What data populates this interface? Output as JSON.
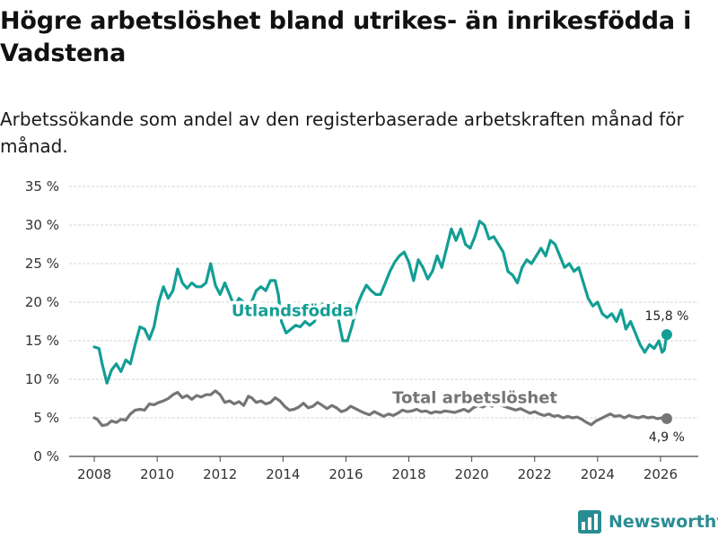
{
  "title": "Högre arbetslöshet bland utrikes- än inrikesfödda i Vadstena",
  "subtitle": "Arbetssökande som andel av den registerbaserade arbetskraften månad för månad.",
  "brand": {
    "name": "Newsworthy",
    "icon": "bar-chart-icon"
  },
  "colors": {
    "utlandsfodda": "#139e95",
    "total": "#757575",
    "grid": "#d6d6d6",
    "brand": "#2a8c93"
  },
  "chart_data": {
    "type": "line",
    "xlim": [
      2007.2,
      2027.2
    ],
    "ylim": [
      0,
      35
    ],
    "x_ticks": [
      2008,
      2010,
      2012,
      2014,
      2016,
      2018,
      2020,
      2022,
      2024,
      2026
    ],
    "x_tick_labels": [
      "2008",
      "2010",
      "2012",
      "2014",
      "2016",
      "2018",
      "2020",
      "2022",
      "2024",
      "2026"
    ],
    "y_ticks": [
      0,
      5,
      10,
      15,
      20,
      25,
      30,
      35
    ],
    "y_tick_labels": [
      "0 %",
      "5 %",
      "10 %",
      "15 %",
      "20 %",
      "25 %",
      "30 %",
      "35 %"
    ],
    "grid": true,
    "series": [
      {
        "name": "Utlandsfödda",
        "color": "#139e95",
        "end_label": "15,8 %",
        "points": [
          [
            2008.0,
            14.2
          ],
          [
            2008.15,
            14.0
          ],
          [
            2008.25,
            12.0
          ],
          [
            2008.4,
            9.5
          ],
          [
            2008.55,
            11.2
          ],
          [
            2008.7,
            12.0
          ],
          [
            2008.85,
            11.0
          ],
          [
            2009.0,
            12.5
          ],
          [
            2009.15,
            12.0
          ],
          [
            2009.3,
            14.5
          ],
          [
            2009.45,
            16.8
          ],
          [
            2009.6,
            16.5
          ],
          [
            2009.75,
            15.2
          ],
          [
            2009.9,
            16.8
          ],
          [
            2010.05,
            20.0
          ],
          [
            2010.2,
            22.0
          ],
          [
            2010.35,
            20.5
          ],
          [
            2010.5,
            21.5
          ],
          [
            2010.65,
            24.3
          ],
          [
            2010.8,
            22.5
          ],
          [
            2010.95,
            21.8
          ],
          [
            2011.1,
            22.5
          ],
          [
            2011.25,
            22.0
          ],
          [
            2011.4,
            22.0
          ],
          [
            2011.55,
            22.5
          ],
          [
            2011.7,
            25.0
          ],
          [
            2011.85,
            22.2
          ],
          [
            2012.0,
            21.0
          ],
          [
            2012.15,
            22.5
          ],
          [
            2012.3,
            21.0
          ],
          [
            2012.45,
            19.5
          ],
          [
            2012.6,
            20.5
          ],
          [
            2012.75,
            20.0
          ],
          [
            2012.85,
            18.0
          ],
          [
            2013.0,
            20.0
          ],
          [
            2013.15,
            21.5
          ],
          [
            2013.3,
            22.0
          ],
          [
            2013.45,
            21.5
          ],
          [
            2013.6,
            22.8
          ],
          [
            2013.75,
            22.8
          ],
          [
            2013.85,
            21.0
          ],
          [
            2013.95,
            17.5
          ],
          [
            2014.1,
            16.0
          ],
          [
            2014.25,
            16.5
          ],
          [
            2014.4,
            17.0
          ],
          [
            2014.55,
            16.8
          ],
          [
            2014.7,
            17.5
          ],
          [
            2014.85,
            17.0
          ],
          [
            2015.0,
            17.5
          ],
          [
            2015.15,
            19.5
          ],
          [
            2015.3,
            19.8
          ],
          [
            2015.45,
            19.5
          ],
          [
            2015.6,
            19.8
          ],
          [
            2015.75,
            18.0
          ],
          [
            2015.9,
            15.0
          ],
          [
            2016.05,
            15.0
          ],
          [
            2016.2,
            17.0
          ],
          [
            2016.35,
            19.5
          ],
          [
            2016.5,
            21.0
          ],
          [
            2016.65,
            22.2
          ],
          [
            2016.8,
            21.5
          ],
          [
            2016.95,
            21.0
          ],
          [
            2017.1,
            21.0
          ],
          [
            2017.25,
            22.5
          ],
          [
            2017.4,
            24.0
          ],
          [
            2017.55,
            25.2
          ],
          [
            2017.7,
            26.0
          ],
          [
            2017.85,
            26.5
          ],
          [
            2018.0,
            25.2
          ],
          [
            2018.15,
            22.8
          ],
          [
            2018.3,
            25.5
          ],
          [
            2018.45,
            24.5
          ],
          [
            2018.6,
            23.0
          ],
          [
            2018.75,
            24.0
          ],
          [
            2018.9,
            26.0
          ],
          [
            2019.05,
            24.5
          ],
          [
            2019.2,
            27.0
          ],
          [
            2019.35,
            29.5
          ],
          [
            2019.5,
            28.0
          ],
          [
            2019.65,
            29.5
          ],
          [
            2019.8,
            27.5
          ],
          [
            2019.95,
            27.0
          ],
          [
            2020.1,
            28.5
          ],
          [
            2020.25,
            30.5
          ],
          [
            2020.4,
            30.0
          ],
          [
            2020.55,
            28.2
          ],
          [
            2020.7,
            28.5
          ],
          [
            2020.85,
            27.5
          ],
          [
            2021.0,
            26.5
          ],
          [
            2021.15,
            24.0
          ],
          [
            2021.3,
            23.5
          ],
          [
            2021.45,
            22.5
          ],
          [
            2021.6,
            24.5
          ],
          [
            2021.75,
            25.5
          ],
          [
            2021.9,
            25.0
          ],
          [
            2022.05,
            26.0
          ],
          [
            2022.2,
            27.0
          ],
          [
            2022.35,
            26.0
          ],
          [
            2022.5,
            28.0
          ],
          [
            2022.65,
            27.5
          ],
          [
            2022.8,
            26.0
          ],
          [
            2022.95,
            24.5
          ],
          [
            2023.1,
            25.0
          ],
          [
            2023.25,
            24.0
          ],
          [
            2023.4,
            24.5
          ],
          [
            2023.55,
            22.5
          ],
          [
            2023.7,
            20.5
          ],
          [
            2023.85,
            19.5
          ],
          [
            2024.0,
            20.0
          ],
          [
            2024.15,
            18.5
          ],
          [
            2024.3,
            18.0
          ],
          [
            2024.45,
            18.5
          ],
          [
            2024.6,
            17.5
          ],
          [
            2024.75,
            19.0
          ],
          [
            2024.9,
            16.5
          ],
          [
            2025.05,
            17.5
          ],
          [
            2025.2,
            16.0
          ],
          [
            2025.35,
            14.5
          ],
          [
            2025.5,
            13.5
          ],
          [
            2025.65,
            14.5
          ],
          [
            2025.8,
            14.0
          ],
          [
            2025.95,
            15.0
          ],
          [
            2026.05,
            13.5
          ],
          [
            2026.12,
            13.8
          ],
          [
            2026.2,
            15.8
          ]
        ]
      },
      {
        "name": "Total arbetslöshet",
        "color": "#757575",
        "end_label": "4,9 %",
        "points": [
          [
            2008.0,
            5.0
          ],
          [
            2008.1,
            4.8
          ],
          [
            2008.25,
            4.0
          ],
          [
            2008.4,
            4.1
          ],
          [
            2008.55,
            4.6
          ],
          [
            2008.7,
            4.4
          ],
          [
            2008.85,
            4.8
          ],
          [
            2009.0,
            4.7
          ],
          [
            2009.15,
            5.5
          ],
          [
            2009.3,
            6.0
          ],
          [
            2009.45,
            6.1
          ],
          [
            2009.6,
            6.0
          ],
          [
            2009.75,
            6.8
          ],
          [
            2009.9,
            6.7
          ],
          [
            2010.05,
            7.0
          ],
          [
            2010.2,
            7.2
          ],
          [
            2010.35,
            7.5
          ],
          [
            2010.5,
            8.0
          ],
          [
            2010.65,
            8.3
          ],
          [
            2010.8,
            7.6
          ],
          [
            2010.95,
            7.9
          ],
          [
            2011.1,
            7.4
          ],
          [
            2011.25,
            7.9
          ],
          [
            2011.4,
            7.7
          ],
          [
            2011.55,
            8.0
          ],
          [
            2011.7,
            8.0
          ],
          [
            2011.85,
            8.5
          ],
          [
            2012.0,
            8.0
          ],
          [
            2012.15,
            7.0
          ],
          [
            2012.3,
            7.2
          ],
          [
            2012.45,
            6.8
          ],
          [
            2012.6,
            7.1
          ],
          [
            2012.75,
            6.6
          ],
          [
            2012.9,
            7.8
          ],
          [
            2013.0,
            7.6
          ],
          [
            2013.15,
            7.0
          ],
          [
            2013.3,
            7.2
          ],
          [
            2013.45,
            6.8
          ],
          [
            2013.6,
            7.0
          ],
          [
            2013.75,
            7.6
          ],
          [
            2013.9,
            7.2
          ],
          [
            2014.05,
            6.5
          ],
          [
            2014.2,
            6.0
          ],
          [
            2014.35,
            6.1
          ],
          [
            2014.5,
            6.4
          ],
          [
            2014.65,
            6.9
          ],
          [
            2014.8,
            6.3
          ],
          [
            2014.95,
            6.5
          ],
          [
            2015.1,
            7.0
          ],
          [
            2015.25,
            6.6
          ],
          [
            2015.4,
            6.2
          ],
          [
            2015.55,
            6.6
          ],
          [
            2015.7,
            6.3
          ],
          [
            2015.85,
            5.8
          ],
          [
            2016.0,
            6.0
          ],
          [
            2016.15,
            6.5
          ],
          [
            2016.3,
            6.2
          ],
          [
            2016.45,
            5.9
          ],
          [
            2016.6,
            5.6
          ],
          [
            2016.75,
            5.4
          ],
          [
            2016.9,
            5.8
          ],
          [
            2017.05,
            5.5
          ],
          [
            2017.2,
            5.2
          ],
          [
            2017.35,
            5.5
          ],
          [
            2017.5,
            5.3
          ],
          [
            2017.65,
            5.6
          ],
          [
            2017.8,
            6.0
          ],
          [
            2017.95,
            5.8
          ],
          [
            2018.1,
            5.9
          ],
          [
            2018.25,
            6.1
          ],
          [
            2018.4,
            5.8
          ],
          [
            2018.55,
            5.9
          ],
          [
            2018.7,
            5.6
          ],
          [
            2018.85,
            5.8
          ],
          [
            2019.0,
            5.7
          ],
          [
            2019.15,
            5.9
          ],
          [
            2019.3,
            5.8
          ],
          [
            2019.45,
            5.7
          ],
          [
            2019.6,
            5.9
          ],
          [
            2019.75,
            6.1
          ],
          [
            2019.9,
            5.8
          ],
          [
            2020.05,
            6.3
          ],
          [
            2020.2,
            6.6
          ],
          [
            2020.35,
            6.4
          ],
          [
            2020.5,
            6.7
          ],
          [
            2020.65,
            6.5
          ],
          [
            2020.8,
            6.9
          ],
          [
            2020.95,
            6.6
          ],
          [
            2021.1,
            6.4
          ],
          [
            2021.25,
            6.2
          ],
          [
            2021.4,
            6.0
          ],
          [
            2021.55,
            6.2
          ],
          [
            2021.7,
            5.9
          ],
          [
            2021.85,
            5.6
          ],
          [
            2022.0,
            5.8
          ],
          [
            2022.15,
            5.5
          ],
          [
            2022.3,
            5.3
          ],
          [
            2022.45,
            5.5
          ],
          [
            2022.6,
            5.2
          ],
          [
            2022.75,
            5.3
          ],
          [
            2022.9,
            5.0
          ],
          [
            2023.05,
            5.2
          ],
          [
            2023.2,
            5.0
          ],
          [
            2023.35,
            5.1
          ],
          [
            2023.5,
            4.8
          ],
          [
            2023.65,
            4.4
          ],
          [
            2023.8,
            4.1
          ],
          [
            2023.95,
            4.6
          ],
          [
            2024.1,
            4.9
          ],
          [
            2024.25,
            5.2
          ],
          [
            2024.4,
            5.5
          ],
          [
            2024.55,
            5.2
          ],
          [
            2024.7,
            5.3
          ],
          [
            2024.85,
            5.0
          ],
          [
            2025.0,
            5.3
          ],
          [
            2025.15,
            5.1
          ],
          [
            2025.3,
            5.0
          ],
          [
            2025.45,
            5.2
          ],
          [
            2025.6,
            5.0
          ],
          [
            2025.75,
            5.1
          ],
          [
            2025.9,
            4.9
          ],
          [
            2026.05,
            5.0
          ],
          [
            2026.2,
            4.9
          ]
        ]
      }
    ],
    "annotations": [
      {
        "text": "Utlandsfödda",
        "x": 2014.3,
        "y": 18.2,
        "series": "Utlandsfödda"
      },
      {
        "text": "Total arbetslöshet",
        "x": 2020.1,
        "y": 6.9,
        "series": "Total arbetslöshet"
      }
    ]
  }
}
